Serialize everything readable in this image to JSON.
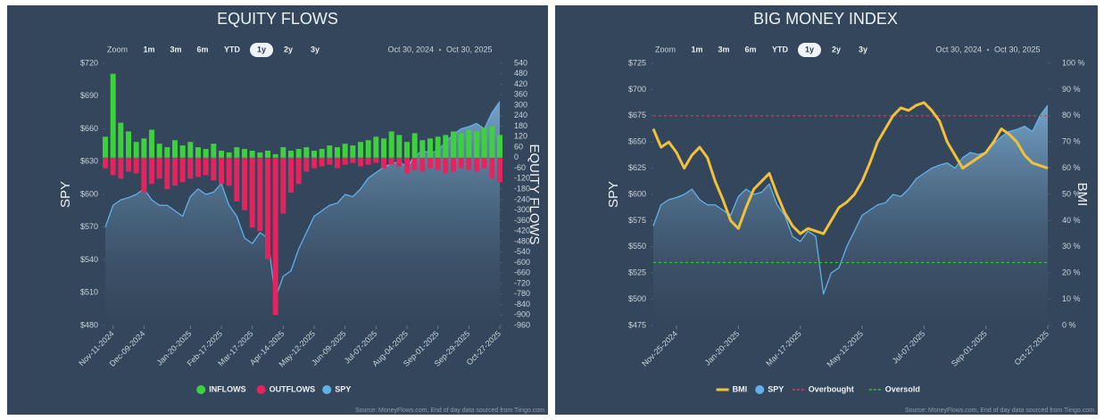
{
  "chart_data": [
    {
      "type": "combo",
      "title": "EQUITY FLOWS",
      "zoom": {
        "label": "Zoom",
        "options": [
          "1m",
          "3m",
          "6m",
          "YTD",
          "1y",
          "2y",
          "3y"
        ],
        "selected_index": 4
      },
      "range": [
        "Oct 30, 2024",
        "Oct 30, 2025"
      ],
      "y_label": "SPY",
      "y2_label": "EQUITY FLOWS",
      "categories": [
        null,
        "Nov-11-2024",
        null,
        null,
        null,
        "Dec-09-2024",
        null,
        null,
        null,
        null,
        null,
        "Jan-20-2025",
        null,
        null,
        null,
        "Feb-17-2025",
        null,
        null,
        null,
        "Mar-17-2025",
        null,
        null,
        null,
        "Apr-14-2025",
        null,
        null,
        null,
        "May-12-2025",
        null,
        null,
        null,
        "Jun-09-2025",
        null,
        null,
        null,
        "Jul-07-2025",
        null,
        null,
        null,
        "Aug-04-2025",
        null,
        null,
        null,
        "Sep-01-2025",
        null,
        null,
        null,
        "Sep-29-2025",
        null,
        null,
        null,
        "Oct-27-2025"
      ],
      "series": [
        {
          "name": "INFLOWS",
          "color": "#3ed13e",
          "kind": "bar",
          "axis": "y2",
          "values": [
            120,
            480,
            200,
            150,
            90,
            110,
            160,
            80,
            60,
            100,
            70,
            90,
            60,
            50,
            80,
            40,
            30,
            60,
            50,
            40,
            30,
            40,
            20,
            60,
            40,
            50,
            60,
            40,
            50,
            70,
            60,
            80,
            70,
            90,
            100,
            120,
            110,
            150,
            130,
            90,
            140,
            100,
            110,
            120,
            130,
            150,
            140,
            160,
            150,
            170,
            180,
            130
          ]
        },
        {
          "name": "OUTFLOWS",
          "color": "#e2245f",
          "kind": "bar",
          "axis": "y2",
          "values": [
            -60,
            -100,
            -120,
            -80,
            -90,
            -200,
            -150,
            -120,
            -180,
            -160,
            -140,
            -120,
            -110,
            -100,
            -130,
            -150,
            -160,
            -250,
            -300,
            -400,
            -420,
            -580,
            -900,
            -320,
            -200,
            -150,
            -80,
            -60,
            -50,
            -40,
            -60,
            -40,
            -30,
            -50,
            -40,
            -30,
            -60,
            -40,
            -50,
            -90,
            -70,
            -80,
            -60,
            -70,
            -90,
            -80,
            -60,
            -70,
            -80,
            -60,
            -120,
            -140
          ]
        },
        {
          "name": "SPY",
          "color": "#62b0e8",
          "kind": "area",
          "values": [
            570,
            590,
            595,
            597,
            600,
            605,
            595,
            590,
            590,
            585,
            580,
            598,
            605,
            600,
            602,
            610,
            590,
            580,
            560,
            555,
            565,
            560,
            505,
            525,
            530,
            550,
            565,
            580,
            585,
            590,
            592,
            600,
            598,
            605,
            615,
            620,
            625,
            628,
            630,
            625,
            635,
            640,
            638,
            640,
            648,
            655,
            660,
            662,
            665,
            660,
            675,
            685
          ]
        }
      ],
      "ylim": [
        480,
        720
      ],
      "yticks": [
        {
          "value": 480,
          "label": "$480"
        },
        {
          "value": 510,
          "label": "$510"
        },
        {
          "value": 540,
          "label": "$540"
        },
        {
          "value": 570,
          "label": "$570"
        },
        {
          "value": 600,
          "label": "$600"
        },
        {
          "value": 630,
          "label": "$630"
        },
        {
          "value": 660,
          "label": "$660"
        },
        {
          "value": 690,
          "label": "$690"
        },
        {
          "value": 720,
          "label": "$720"
        }
      ],
      "y2lim": [
        -960,
        540
      ],
      "y2ticks": [
        -960,
        -900,
        -840,
        -780,
        -720,
        -660,
        -600,
        -540,
        -480,
        -420,
        -360,
        -300,
        -240,
        -180,
        -120,
        -60,
        0,
        60,
        120,
        180,
        240,
        300,
        360,
        420,
        480,
        540
      ],
      "source": "Source: MoneyFlows.com, End of day data sourced from Tiingo.com"
    },
    {
      "type": "combo",
      "title": "BIG MONEY INDEX",
      "zoom": {
        "label": "Zoom",
        "options": [
          "1m",
          "3m",
          "6m",
          "YTD",
          "1y",
          "2y",
          "3y"
        ],
        "selected_index": 4
      },
      "range": [
        "Oct 30, 2024",
        "Oct 30, 2025"
      ],
      "y_label": "SPY",
      "y2_label": "BMI",
      "categories": [
        null,
        null,
        null,
        "Nov-25-2024",
        null,
        null,
        null,
        null,
        null,
        null,
        null,
        "Jan-20-2025",
        null,
        null,
        null,
        null,
        null,
        null,
        null,
        "Mar-17-2025",
        null,
        null,
        null,
        null,
        null,
        null,
        null,
        "May-12-2025",
        null,
        null,
        null,
        null,
        null,
        null,
        null,
        "Jul-07-2025",
        null,
        null,
        null,
        null,
        null,
        null,
        null,
        "Sep-01-2025",
        null,
        null,
        null,
        null,
        null,
        null,
        null,
        "Oct-27-2025"
      ],
      "series": [
        {
          "name": "BMI",
          "color": "#f2c03a",
          "kind": "line",
          "axis": "y2",
          "values": [
            75,
            68,
            70,
            66,
            60,
            65,
            68,
            64,
            55,
            48,
            40,
            37,
            45,
            52,
            55,
            58,
            50,
            43,
            38,
            35,
            37,
            36,
            35,
            40,
            45,
            47,
            50,
            55,
            62,
            70,
            75,
            80,
            83,
            82,
            84,
            85,
            82,
            78,
            70,
            65,
            60,
            62,
            64,
            66,
            70,
            75,
            73,
            70,
            65,
            62,
            61,
            60
          ]
        },
        {
          "name": "SPY",
          "color": "#62b0e8",
          "kind": "area",
          "values": [
            570,
            590,
            595,
            597,
            600,
            605,
            595,
            590,
            590,
            585,
            580,
            598,
            605,
            600,
            602,
            610,
            590,
            580,
            560,
            555,
            565,
            560,
            505,
            525,
            530,
            550,
            565,
            580,
            585,
            590,
            592,
            600,
            598,
            605,
            615,
            620,
            625,
            628,
            630,
            625,
            635,
            640,
            638,
            640,
            648,
            655,
            660,
            662,
            665,
            660,
            675,
            685
          ]
        },
        {
          "name": "Overbought",
          "color": "#d0406e",
          "kind": "hline",
          "axis": "y2",
          "value": 80
        },
        {
          "name": "Oversold",
          "color": "#3cc43c",
          "kind": "hline",
          "axis": "y2",
          "value": 24
        }
      ],
      "ylim": [
        475,
        725
      ],
      "yticks": [
        {
          "value": 475,
          "label": "$475"
        },
        {
          "value": 500,
          "label": "$500"
        },
        {
          "value": 525,
          "label": "$525"
        },
        {
          "value": 550,
          "label": "$550"
        },
        {
          "value": 575,
          "label": "$575"
        },
        {
          "value": 600,
          "label": "$600"
        },
        {
          "value": 625,
          "label": "$625"
        },
        {
          "value": 650,
          "label": "$650"
        },
        {
          "value": 675,
          "label": "$675"
        },
        {
          "value": 700,
          "label": "$700"
        },
        {
          "value": 725,
          "label": "$725"
        }
      ],
      "y2lim": [
        0,
        100
      ],
      "y2ticks": [
        {
          "value": 0,
          "label": "0 %"
        },
        {
          "value": 10,
          "label": "10 %"
        },
        {
          "value": 20,
          "label": "20 %"
        },
        {
          "value": 30,
          "label": "30 %"
        },
        {
          "value": 40,
          "label": "40 %"
        },
        {
          "value": 50,
          "label": "50 %"
        },
        {
          "value": 60,
          "label": "60 %"
        },
        {
          "value": 70,
          "label": "70 %"
        },
        {
          "value": 80,
          "label": "80 %"
        },
        {
          "value": 90,
          "label": "90 %"
        },
        {
          "value": 100,
          "label": "100 %"
        }
      ],
      "source": "Source: MoneyFlows.com, End of day data sourced from Tiingo.com"
    }
  ]
}
